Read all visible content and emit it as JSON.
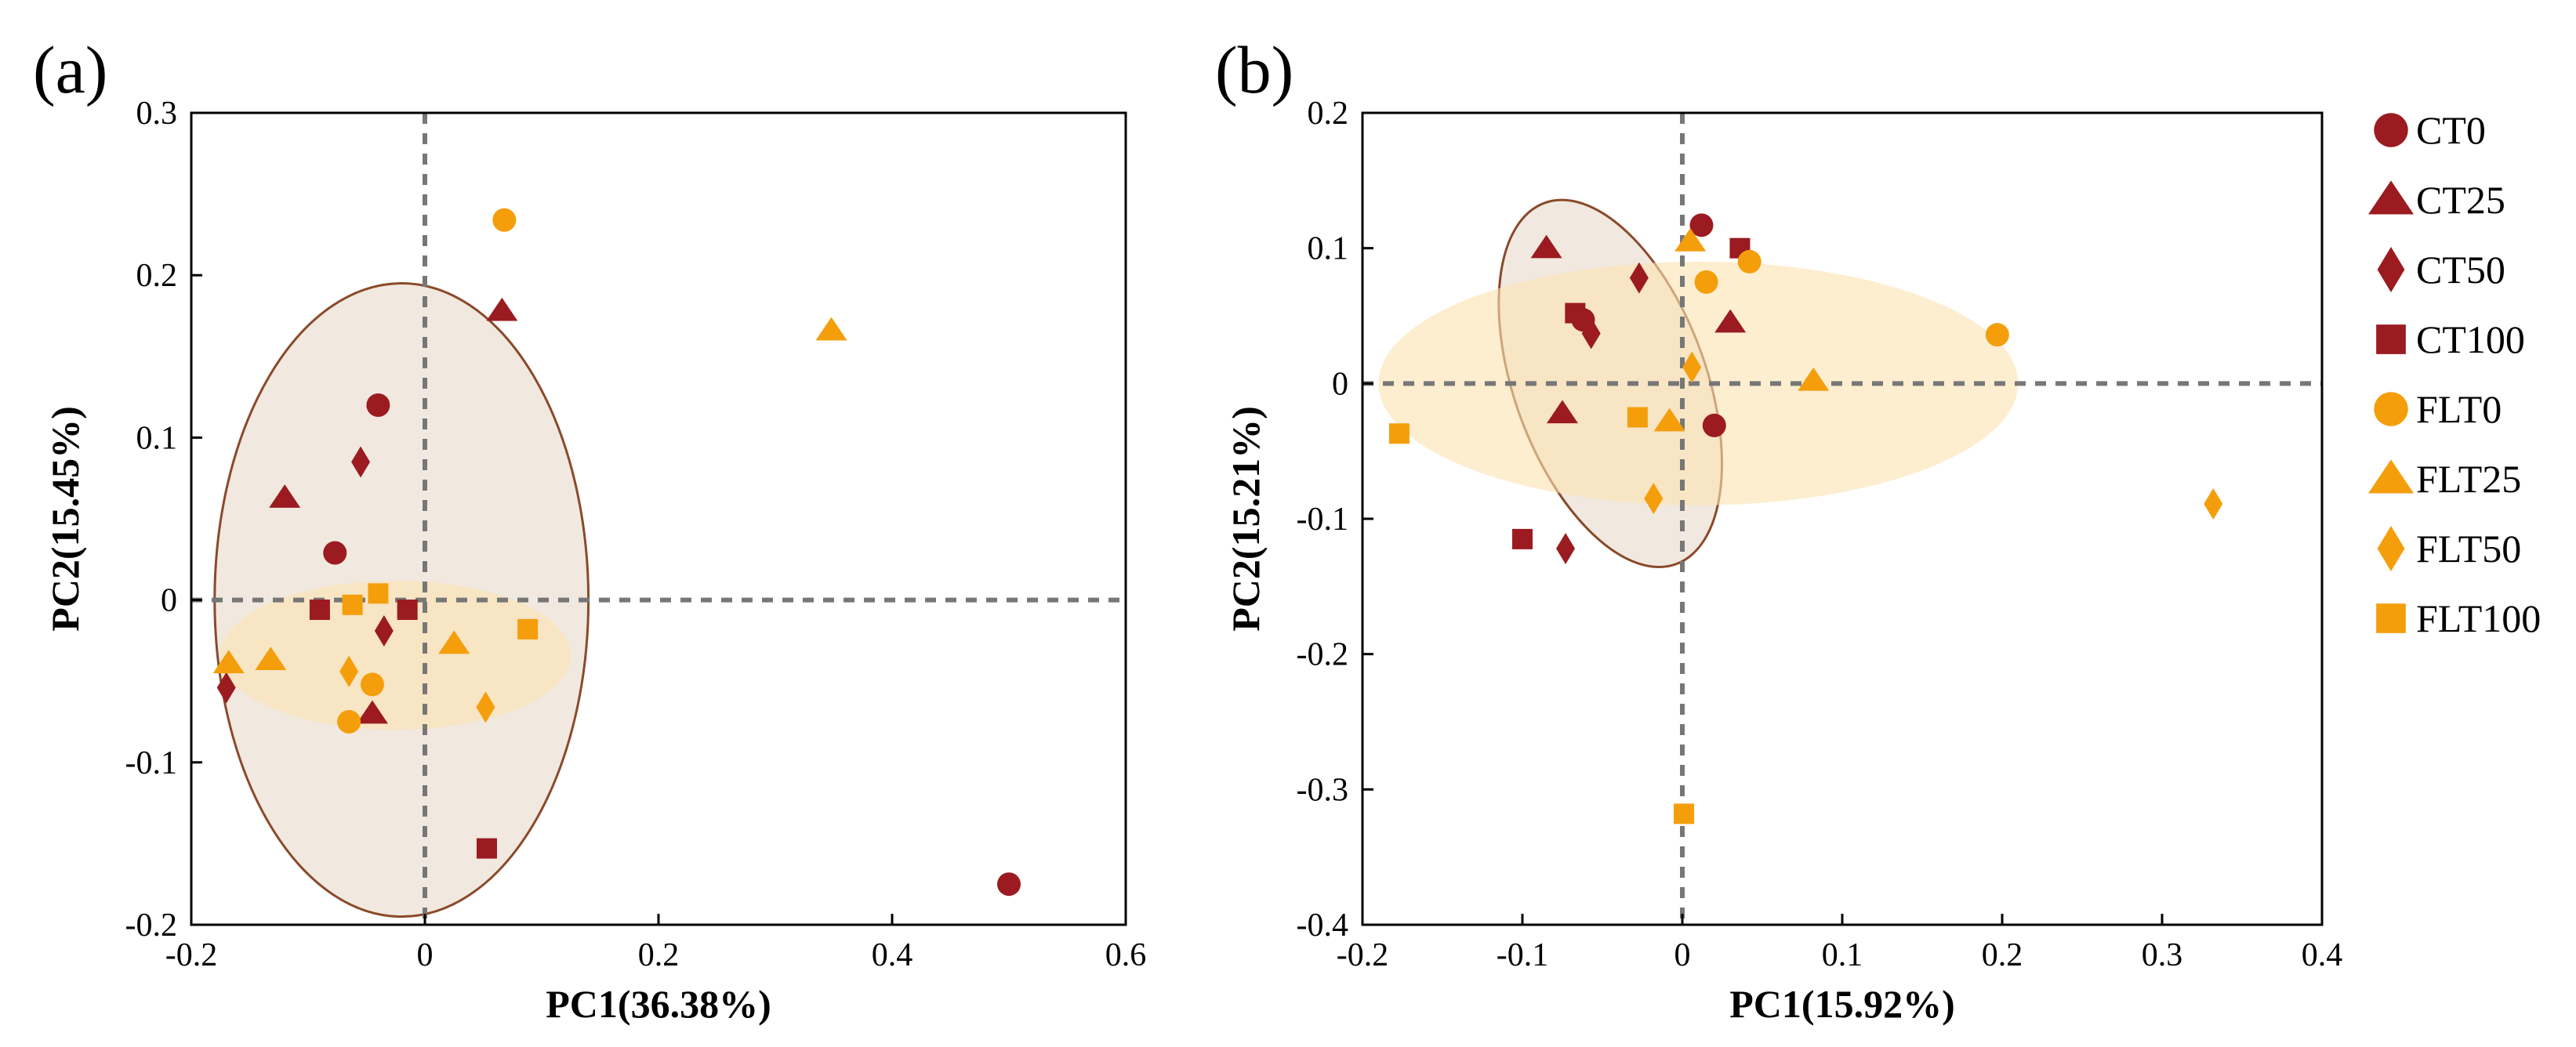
{
  "colors": {
    "CT": "#9b1b20",
    "FLT": "#f59e0b",
    "ct_ellipse_fill": "#efe5db",
    "ct_ellipse_stroke": "#8a4a2a",
    "flt_ellipse_fill": "#fbe3b0"
  },
  "legend": [
    {
      "name": "CT0",
      "shape": "circle",
      "group": "CT"
    },
    {
      "name": "CT25",
      "shape": "triangle",
      "group": "CT"
    },
    {
      "name": "CT50",
      "shape": "diamond",
      "group": "CT"
    },
    {
      "name": "CT100",
      "shape": "square",
      "group": "CT"
    },
    {
      "name": "FLT0",
      "shape": "circle",
      "group": "FLT"
    },
    {
      "name": "FLT25",
      "shape": "triangle",
      "group": "FLT"
    },
    {
      "name": "FLT50",
      "shape": "diamond",
      "group": "FLT"
    },
    {
      "name": "FLT100",
      "shape": "square",
      "group": "FLT"
    }
  ],
  "chart_data": [
    {
      "type": "scatter",
      "label": "(a)",
      "xlabel": "PC1(36.38%)",
      "ylabel": "PC2(15.45%)",
      "xlim": [
        -0.2,
        0.6
      ],
      "ylim": [
        -0.2,
        0.3
      ],
      "xticks": [
        -0.2,
        0,
        0.2,
        0.4,
        0.6
      ],
      "xtick_labels": [
        "-0.2",
        "0",
        "0.2",
        "0.4",
        "0.6"
      ],
      "yticks": [
        -0.2,
        -0.1,
        0,
        0.1,
        0.2,
        0.3
      ],
      "ytick_labels": [
        "-0.2",
        "-0.1",
        "0",
        "0.1",
        "0.2",
        "0.3"
      ],
      "ellipses": [
        {
          "group": "CT",
          "cx": -0.02,
          "cy": 0.0,
          "rx": 0.16,
          "ry": 0.195,
          "angle": 0
        },
        {
          "group": "FLT",
          "cx": -0.025,
          "cy": -0.034,
          "rx": 0.15,
          "ry": 0.046,
          "angle": 0
        }
      ],
      "series": [
        {
          "name": "CT0",
          "points": [
            [
              -0.04,
              0.12
            ],
            [
              -0.077,
              0.029
            ],
            [
              0.5,
              -0.175
            ]
          ]
        },
        {
          "name": "CT25",
          "points": [
            [
              -0.12,
              0.063
            ],
            [
              0.066,
              0.178
            ],
            [
              -0.045,
              -0.07
            ]
          ]
        },
        {
          "name": "CT50",
          "points": [
            [
              -0.055,
              0.085
            ],
            [
              -0.035,
              -0.019
            ],
            [
              -0.17,
              -0.054
            ]
          ]
        },
        {
          "name": "CT100",
          "points": [
            [
              -0.09,
              -0.006
            ],
            [
              -0.015,
              -0.006
            ],
            [
              0.053,
              -0.153
            ]
          ]
        },
        {
          "name": "FLT0",
          "points": [
            [
              0.068,
              0.234
            ],
            [
              -0.045,
              -0.052
            ],
            [
              -0.065,
              -0.075
            ]
          ]
        },
        {
          "name": "FLT25",
          "points": [
            [
              0.348,
              0.166
            ],
            [
              -0.132,
              -0.037
            ],
            [
              0.025,
              -0.027
            ],
            [
              -0.168,
              -0.039
            ]
          ]
        },
        {
          "name": "FLT50",
          "points": [
            [
              -0.065,
              -0.044
            ],
            [
              0.052,
              -0.066
            ]
          ]
        },
        {
          "name": "FLT100",
          "points": [
            [
              -0.04,
              0.004
            ],
            [
              -0.062,
              -0.003
            ],
            [
              0.088,
              -0.018
            ]
          ]
        }
      ]
    },
    {
      "type": "scatter",
      "label": "(b)",
      "xlabel": "PC1(15.92%)",
      "ylabel": "PC2(15.21%)",
      "xlim": [
        -0.2,
        0.4
      ],
      "ylim": [
        -0.4,
        0.2
      ],
      "xticks": [
        -0.2,
        -0.1,
        0,
        0.1,
        0.2,
        0.3,
        0.4
      ],
      "xtick_labels": [
        "-0.2",
        "-0.1",
        "0",
        "0.1",
        "0.2",
        "0.3",
        "0.4"
      ],
      "yticks": [
        -0.4,
        -0.3,
        -0.2,
        -0.1,
        0,
        0.1,
        0.2
      ],
      "ytick_labels": [
        "-0.4",
        "-0.3",
        "-0.2",
        "-0.1",
        "0",
        "0.1",
        "0.2"
      ],
      "ellipses": [
        {
          "group": "CT",
          "cx": -0.045,
          "cy": 0.0,
          "rx": 0.06,
          "ry": 0.142,
          "angle": 20
        },
        {
          "group": "FLT",
          "cx": 0.01,
          "cy": 0.0,
          "rx": 0.2,
          "ry": 0.09,
          "angle": 0
        }
      ],
      "series": [
        {
          "name": "CT0",
          "points": [
            [
              0.012,
              0.117
            ],
            [
              -0.062,
              0.047
            ],
            [
              0.02,
              -0.031
            ]
          ]
        },
        {
          "name": "CT25",
          "points": [
            [
              -0.085,
              0.1
            ],
            [
              0.03,
              0.045
            ],
            [
              -0.075,
              -0.022
            ]
          ]
        },
        {
          "name": "CT50",
          "points": [
            [
              -0.027,
              0.078
            ],
            [
              -0.057,
              0.037
            ],
            [
              -0.073,
              -0.122
            ]
          ]
        },
        {
          "name": "CT100",
          "points": [
            [
              0.036,
              0.1
            ],
            [
              -0.067,
              0.052
            ],
            [
              -0.1,
              -0.115
            ]
          ]
        },
        {
          "name": "FLT0",
          "points": [
            [
              0.042,
              0.09
            ],
            [
              0.015,
              0.075
            ],
            [
              0.197,
              0.036
            ]
          ]
        },
        {
          "name": "FLT25",
          "points": [
            [
              0.005,
              0.105
            ],
            [
              0.082,
              0.002
            ],
            [
              -0.008,
              -0.028
            ]
          ]
        },
        {
          "name": "FLT50",
          "points": [
            [
              0.006,
              0.012
            ],
            [
              -0.018,
              -0.085
            ],
            [
              0.332,
              -0.089
            ]
          ]
        },
        {
          "name": "FLT100",
          "points": [
            [
              -0.177,
              -0.037
            ],
            [
              -0.028,
              -0.025
            ],
            [
              0.001,
              -0.318
            ]
          ]
        }
      ]
    }
  ]
}
